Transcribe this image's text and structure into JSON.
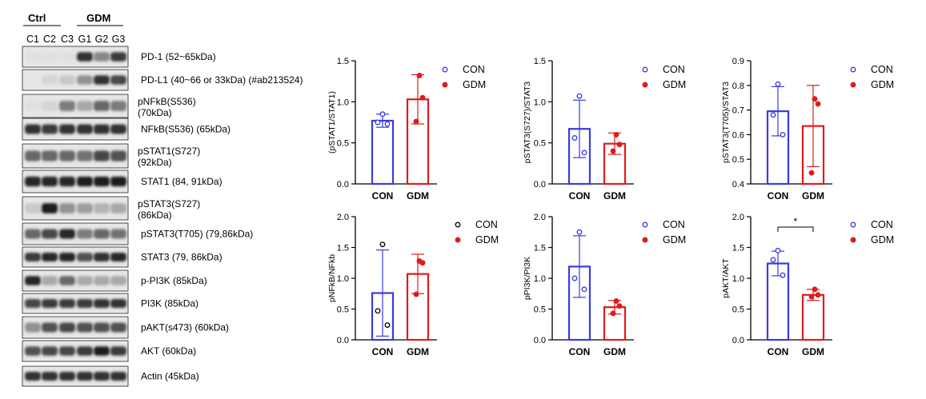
{
  "colors": {
    "con": "#3a3ae0",
    "gdm": "#e01b1b",
    "black": "#000000"
  },
  "western_blot": {
    "groups": [
      "Ctrl",
      "GDM"
    ],
    "lanes": [
      "C1",
      "C2",
      "C3",
      "G1",
      "G2",
      "G3"
    ],
    "bands": [
      {
        "label": "PD-1 (52~65kDa)",
        "label2": "",
        "intensity": [
          0.05,
          0.05,
          0.05,
          0.85,
          0.45,
          0.8
        ]
      },
      {
        "label": "PD-L1 (40~66 or 33kDa)   (#ab213524)",
        "label2": "",
        "intensity": [
          0.0,
          0.1,
          0.15,
          0.4,
          0.85,
          0.75
        ]
      },
      {
        "label": "pNFkB(S536)",
        "label2": "(70kDa)",
        "intensity": [
          0.05,
          0.1,
          0.5,
          0.3,
          0.6,
          0.5
        ]
      },
      {
        "label": "NFkB(S536) (65kDa)",
        "label2": "",
        "intensity": [
          0.85,
          0.8,
          0.85,
          0.85,
          0.85,
          0.85
        ]
      },
      {
        "label": "pSTAT1(S727)",
        "label2": "(92kDa)",
        "intensity": [
          0.6,
          0.6,
          0.6,
          0.55,
          0.75,
          0.7
        ]
      },
      {
        "label": "STAT1 (84, 91kDa)",
        "label2": "",
        "intensity": [
          0.9,
          0.9,
          0.9,
          0.95,
          0.95,
          0.95
        ]
      },
      {
        "label": "pSTAT3(S727)",
        "label2": "(86kDa)",
        "intensity": [
          0.15,
          0.95,
          0.4,
          0.35,
          0.25,
          0.3
        ]
      },
      {
        "label": "pSTAT3(T705) (79,86kDa)",
        "label2": "",
        "intensity": [
          0.6,
          0.75,
          0.9,
          0.5,
          0.6,
          0.55
        ]
      },
      {
        "label": "STAT3 (79, 86kDa)",
        "label2": "",
        "intensity": [
          0.8,
          0.9,
          0.9,
          0.7,
          0.85,
          0.9
        ]
      },
      {
        "label": "p-PI3K (85kDa)",
        "label2": "",
        "intensity": [
          0.9,
          0.3,
          0.6,
          0.3,
          0.3,
          0.3
        ]
      },
      {
        "label": "PI3K (85kDa)",
        "label2": "",
        "intensity": [
          0.75,
          0.8,
          0.8,
          0.8,
          0.85,
          0.85
        ]
      },
      {
        "label": "pAKT(s473) (60kDa)",
        "label2": "",
        "intensity": [
          0.4,
          0.7,
          0.75,
          0.7,
          0.7,
          0.7
        ]
      },
      {
        "label": "AKT (60kDa)",
        "label2": "",
        "intensity": [
          0.7,
          0.75,
          0.75,
          0.8,
          0.95,
          0.8
        ]
      },
      {
        "label": "Actin (45kDa)",
        "label2": "",
        "intensity": [
          0.85,
          0.85,
          0.85,
          0.85,
          0.85,
          0.85
        ]
      }
    ]
  },
  "chart_data": [
    {
      "type": "bar",
      "ylabel": "(pSTAT1/STAT1)",
      "categories": [
        "CON",
        "GDM"
      ],
      "ylim": [
        0,
        1.5
      ],
      "yticks": [
        "0.0",
        "0.5",
        "1.0",
        "1.5"
      ],
      "series": [
        {
          "name": "CON",
          "mean": 0.77,
          "sd": 0.08,
          "points": [
            0.85,
            0.75,
            0.73
          ],
          "filled": false
        },
        {
          "name": "GDM",
          "mean": 1.03,
          "sd": 0.3,
          "points": [
            1.32,
            1.05,
            0.76
          ],
          "filled": true
        }
      ],
      "legend": [
        "CON",
        "GDM"
      ],
      "legend_con_color": "con",
      "significance": ""
    },
    {
      "type": "bar",
      "ylabel": "pSTAT3(S727)/STAT3",
      "categories": [
        "CON",
        "GDM"
      ],
      "ylim": [
        0,
        1.5
      ],
      "yticks": [
        "0.0",
        "0.5",
        "1.0",
        "1.5"
      ],
      "series": [
        {
          "name": "CON",
          "mean": 0.67,
          "sd": 0.35,
          "points": [
            1.07,
            0.56,
            0.38
          ],
          "filled": false
        },
        {
          "name": "GDM",
          "mean": 0.49,
          "sd": 0.13,
          "points": [
            0.6,
            0.48,
            0.4
          ],
          "filled": true
        }
      ],
      "legend": [
        "CON",
        "GDM"
      ],
      "legend_con_color": "con",
      "significance": ""
    },
    {
      "type": "bar",
      "ylabel": "pSTAT3(T705)/STAT3",
      "categories": [
        "CON",
        "GDM"
      ],
      "ylim": [
        0.4,
        0.9
      ],
      "yticks": [
        "0.4",
        "0.5",
        "0.6",
        "0.7",
        "0.8",
        "0.9"
      ],
      "series": [
        {
          "name": "CON",
          "mean": 0.695,
          "sd": 0.1,
          "points": [
            0.805,
            0.68,
            0.6
          ],
          "filled": false
        },
        {
          "name": "GDM",
          "mean": 0.635,
          "sd": 0.165,
          "points": [
            0.745,
            0.725,
            0.445
          ],
          "filled": true
        }
      ],
      "legend": [
        "CON",
        "GDM"
      ],
      "legend_con_color": "con",
      "significance": ""
    },
    {
      "type": "bar",
      "ylabel": "pNFkB/NFkb",
      "categories": [
        "CON",
        "GDM"
      ],
      "ylim": [
        0,
        2.0
      ],
      "yticks": [
        "0.0",
        "0.5",
        "1.0",
        "1.5",
        "2.0"
      ],
      "series": [
        {
          "name": "CON",
          "mean": 0.76,
          "sd": 0.7,
          "points": [
            1.55,
            0.47,
            0.24
          ],
          "filled": false
        },
        {
          "name": "GDM",
          "mean": 1.07,
          "sd": 0.32,
          "points": [
            1.28,
            1.25,
            0.74
          ],
          "filled": true
        }
      ],
      "legend": [
        "CON",
        "GDM"
      ],
      "legend_con_color": "black",
      "significance": ""
    },
    {
      "type": "bar",
      "ylabel": "pPI3K/PI3K",
      "categories": [
        "CON",
        "GDM"
      ],
      "ylim": [
        0,
        2.0
      ],
      "yticks": [
        "0.0",
        "0.5",
        "1.0",
        "1.5",
        "2.0"
      ],
      "series": [
        {
          "name": "CON",
          "mean": 1.19,
          "sd": 0.5,
          "points": [
            1.75,
            1.0,
            0.82
          ],
          "filled": false
        },
        {
          "name": "GDM",
          "mean": 0.53,
          "sd": 0.11,
          "points": [
            0.63,
            0.55,
            0.43
          ],
          "filled": true
        }
      ],
      "legend": [
        "CON",
        "GDM"
      ],
      "legend_con_color": "con",
      "significance": ""
    },
    {
      "type": "bar",
      "ylabel": "pAKT/AKT",
      "categories": [
        "CON",
        "GDM"
      ],
      "ylim": [
        0,
        2.0
      ],
      "yticks": [
        "0.0",
        "0.5",
        "1.0",
        "1.5",
        "2.0"
      ],
      "series": [
        {
          "name": "CON",
          "mean": 1.24,
          "sd": 0.2,
          "points": [
            1.45,
            1.3,
            1.05
          ],
          "filled": false
        },
        {
          "name": "GDM",
          "mean": 0.73,
          "sd": 0.09,
          "points": [
            0.82,
            0.73,
            0.7
          ],
          "filled": true
        }
      ],
      "legend": [
        "CON",
        "GDM"
      ],
      "legend_con_color": "con",
      "significance": "*"
    }
  ]
}
